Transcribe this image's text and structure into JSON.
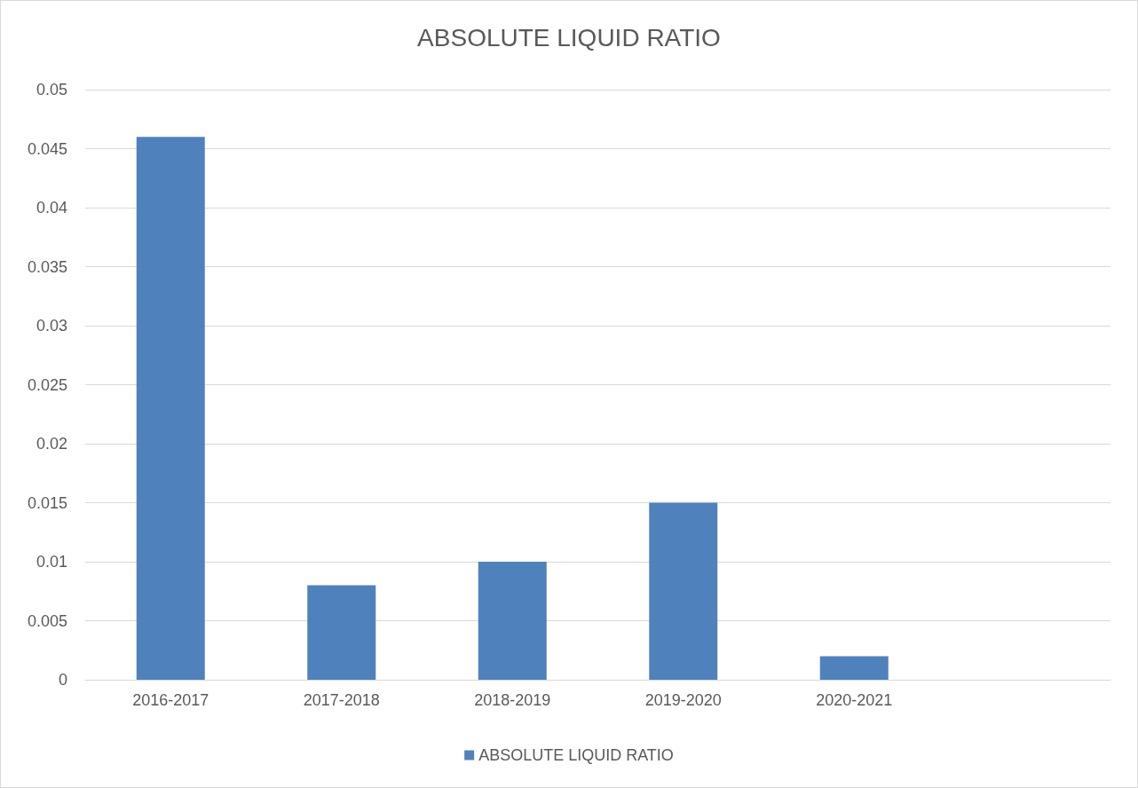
{
  "chart_data": {
    "type": "bar",
    "title": "ABSOLUTE LIQUID RATIO",
    "categories": [
      "2016-2017",
      "2017-2018",
      "2018-2019",
      "2019-2020",
      "2020-2021",
      null
    ],
    "series": [
      {
        "name": "ABSOLUTE LIQUID RATIO",
        "color": "#4f81bd",
        "values": [
          0.046,
          0.008,
          0.01,
          0.015,
          0.002,
          null
        ]
      }
    ],
    "ylim": [
      0,
      0.05
    ],
    "yticks": [
      0,
      0.005,
      0.01,
      0.015,
      0.02,
      0.025,
      0.03,
      0.035,
      0.04,
      0.045,
      0.05
    ],
    "grid": "y",
    "legend": "bottom"
  }
}
